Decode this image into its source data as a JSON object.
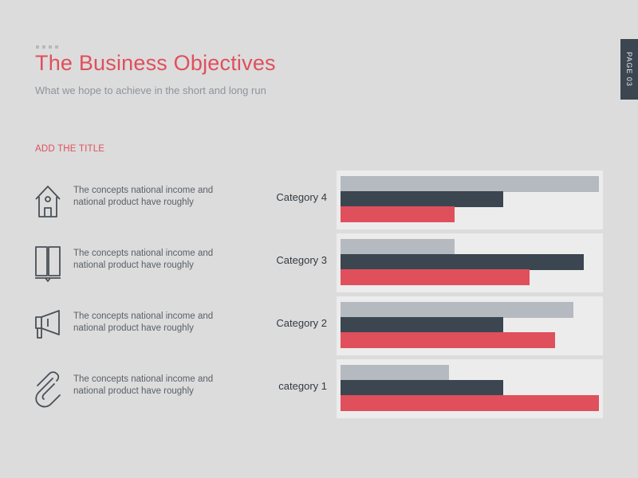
{
  "header": {
    "title": "The Business Objectives",
    "subtitle": "What we hope to achieve in the short and long run",
    "page_tab": "PAGE 03"
  },
  "section": {
    "title": "ADD THE TITLE"
  },
  "features": [
    {
      "icon": "house-icon",
      "text": "The concepts national income and national product have roughly"
    },
    {
      "icon": "book-icon",
      "text": "The concepts national income and national product have roughly"
    },
    {
      "icon": "megaphone-icon",
      "text": "The concepts national income and national product have roughly"
    },
    {
      "icon": "paperclip-icon",
      "text": "The concepts national income and national product have roughly"
    }
  ],
  "colors": {
    "accent": "#e04f5c",
    "dark": "#3b4650",
    "gray": "#b5b9c0",
    "panel": "#ececec"
  },
  "chart_data": {
    "type": "bar",
    "orientation": "horizontal",
    "categories": [
      "Category 4",
      "Category 3",
      "Category 2",
      "category 1"
    ],
    "series": [
      {
        "values": [
          100,
          44,
          90,
          42
        ],
        "color": "#b5b9c0"
      },
      {
        "values": [
          63,
          94,
          63,
          63
        ],
        "color": "#3b4650"
      },
      {
        "values": [
          44,
          73,
          83,
          100
        ],
        "color": "#e04f5c"
      }
    ],
    "xlim": [
      0,
      100
    ],
    "grid": false,
    "legend": "none"
  }
}
